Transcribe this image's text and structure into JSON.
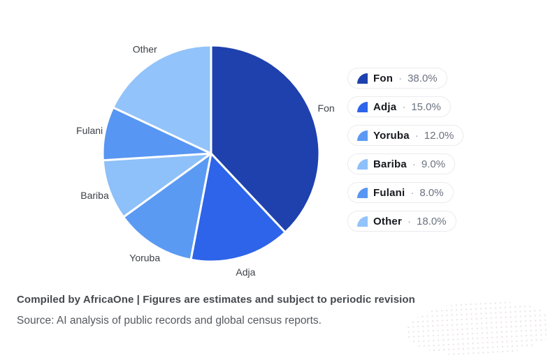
{
  "chart_data": {
    "type": "pie",
    "title": "",
    "categories": [
      "Fon",
      "Adja",
      "Yoruba",
      "Bariba",
      "Fulani",
      "Other"
    ],
    "values": [
      38.0,
      15.0,
      12.0,
      9.0,
      8.0,
      18.0
    ],
    "unit": "%",
    "colors": [
      "#1e41ae",
      "#2e64e9",
      "#5b9af3",
      "#8ec0f9",
      "#5796f2",
      "#92c3fa"
    ],
    "start_angle_deg": 0,
    "direction": "clockwise",
    "slice_border_color": "#ffffff",
    "slice_labels_outside": true,
    "legend_position": "right"
  },
  "legend": {
    "separator": "·",
    "value_texts": [
      "38.0%",
      "15.0%",
      "12.0%",
      "9.0%",
      "8.0%",
      "18.0%"
    ]
  },
  "footer": {
    "compiled_line": "Compiled by AfricaOne | Figures are estimates and subject to periodic revision",
    "source_line": "Source: AI analysis of public records and global census reports."
  }
}
